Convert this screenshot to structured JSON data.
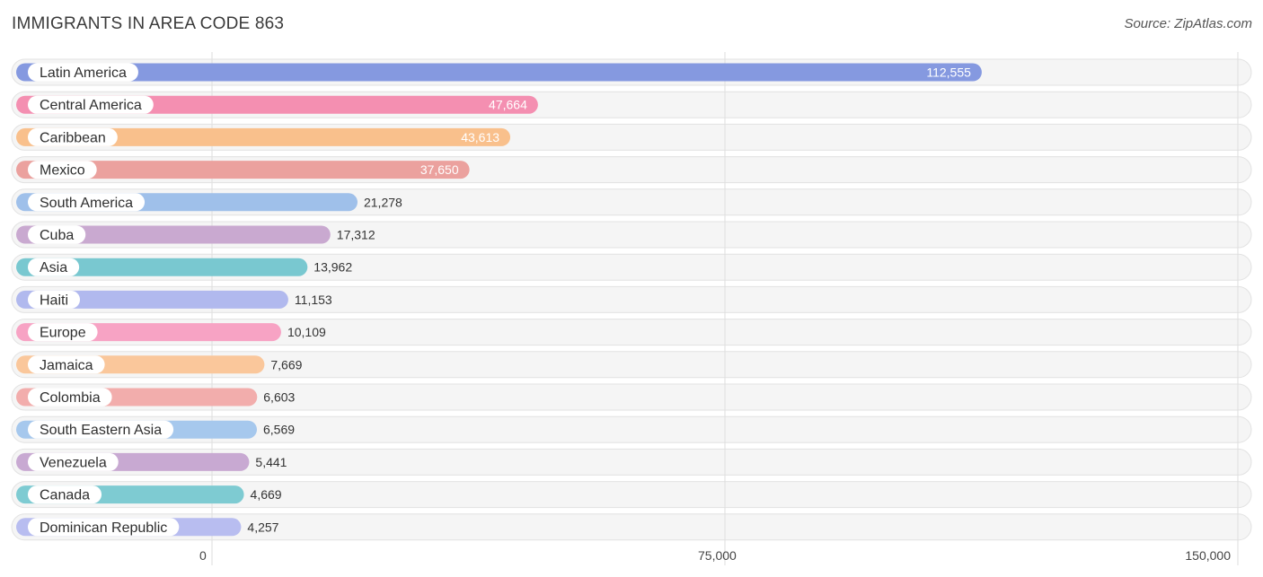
{
  "header": {
    "title": "IMMIGRANTS IN AREA CODE 863",
    "source": "Source: ZipAtlas.com"
  },
  "chart_data": {
    "type": "bar",
    "orientation": "horizontal",
    "title": "IMMIGRANTS IN AREA CODE 863",
    "xlabel": "",
    "ylabel": "",
    "xlim": [
      0,
      150000
    ],
    "ticks": [
      0,
      75000,
      150000
    ],
    "tick_labels": [
      "0",
      "75,000",
      "150,000"
    ],
    "categories": [
      "Latin America",
      "Central America",
      "Caribbean",
      "Mexico",
      "South America",
      "Cuba",
      "Asia",
      "Haiti",
      "Europe",
      "Jamaica",
      "Colombia",
      "South Eastern Asia",
      "Venezuela",
      "Canada",
      "Dominican Republic"
    ],
    "values": [
      112555,
      47664,
      43613,
      37650,
      21278,
      17312,
      13962,
      11153,
      10109,
      7669,
      6603,
      6569,
      5441,
      4669,
      4257
    ],
    "value_labels": [
      "112,555",
      "47,664",
      "43,613",
      "37,650",
      "21,278",
      "17,312",
      "13,962",
      "11,153",
      "10,109",
      "7,669",
      "6,603",
      "6,569",
      "5,441",
      "4,669",
      "4,257"
    ],
    "colors": [
      "#8599e0",
      "#f48fb1",
      "#f9c08c",
      "#eba19e",
      "#9fc0ea",
      "#c9a9d0",
      "#79c8d0",
      "#b1b9ee",
      "#f7a3c4",
      "#fac79b",
      "#f2adac",
      "#a6c8ed",
      "#c8a9d2",
      "#7ecbd2",
      "#b8bdf0"
    ]
  }
}
